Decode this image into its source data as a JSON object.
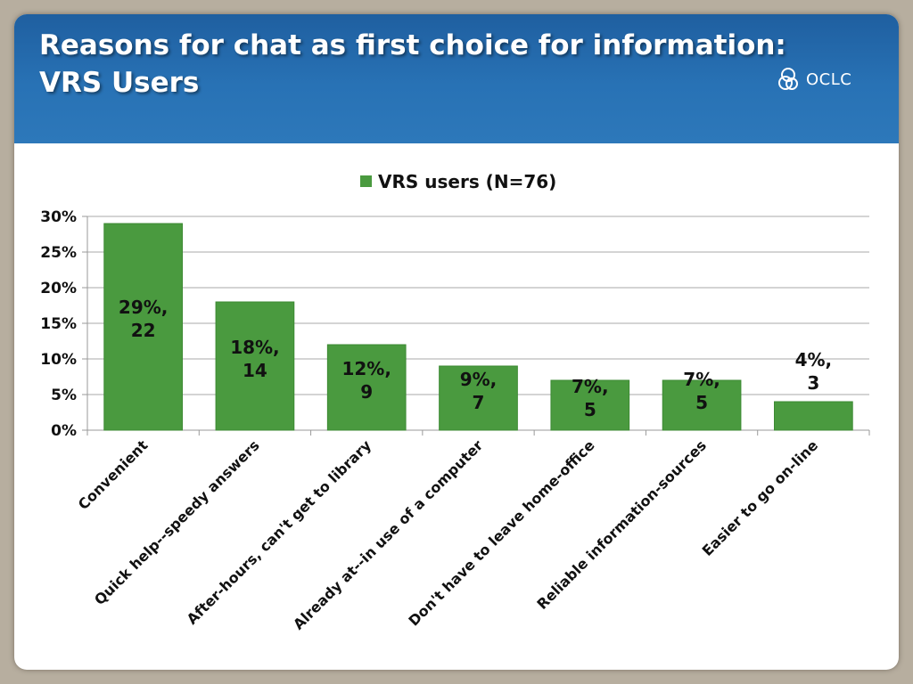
{
  "slide": {
    "title_line1": "Reasons for chat as first choice for information:",
    "title_line2": "VRS Users",
    "logo_text": "OCLC"
  },
  "colors": {
    "header": "#2872b5",
    "bar": "#4a9a3f",
    "bar_border": "#3c8a33"
  },
  "chart_data": {
    "type": "bar",
    "categories": [
      "Convenient",
      "Quick help--speedy answers",
      "After-hours, can't get to library",
      "Already at--in use of a computer",
      "Don't have to leave home-office",
      "Reliable information-sources",
      "Easier to go on-line"
    ],
    "series": [
      {
        "name": "VRS users (N=76)",
        "values": [
          29,
          18,
          12,
          9,
          7,
          7,
          4
        ],
        "counts": [
          22,
          14,
          9,
          7,
          5,
          5,
          3
        ]
      }
    ],
    "data_labels": [
      [
        "29%,",
        "22"
      ],
      [
        "18%,",
        "14"
      ],
      [
        "12%,",
        "9"
      ],
      [
        "9%,",
        "7"
      ],
      [
        "7%,",
        "5"
      ],
      [
        "7%,",
        "5"
      ],
      [
        "4%,",
        "3"
      ]
    ],
    "ylim": [
      0,
      30
    ],
    "yticks": [
      "0%",
      "5%",
      "10%",
      "15%",
      "20%",
      "25%",
      "30%"
    ],
    "ytick_values": [
      0,
      5,
      10,
      15,
      20,
      25,
      30
    ],
    "grid": true,
    "legend": "top-center",
    "title": "",
    "xlabel": "",
    "ylabel": ""
  }
}
